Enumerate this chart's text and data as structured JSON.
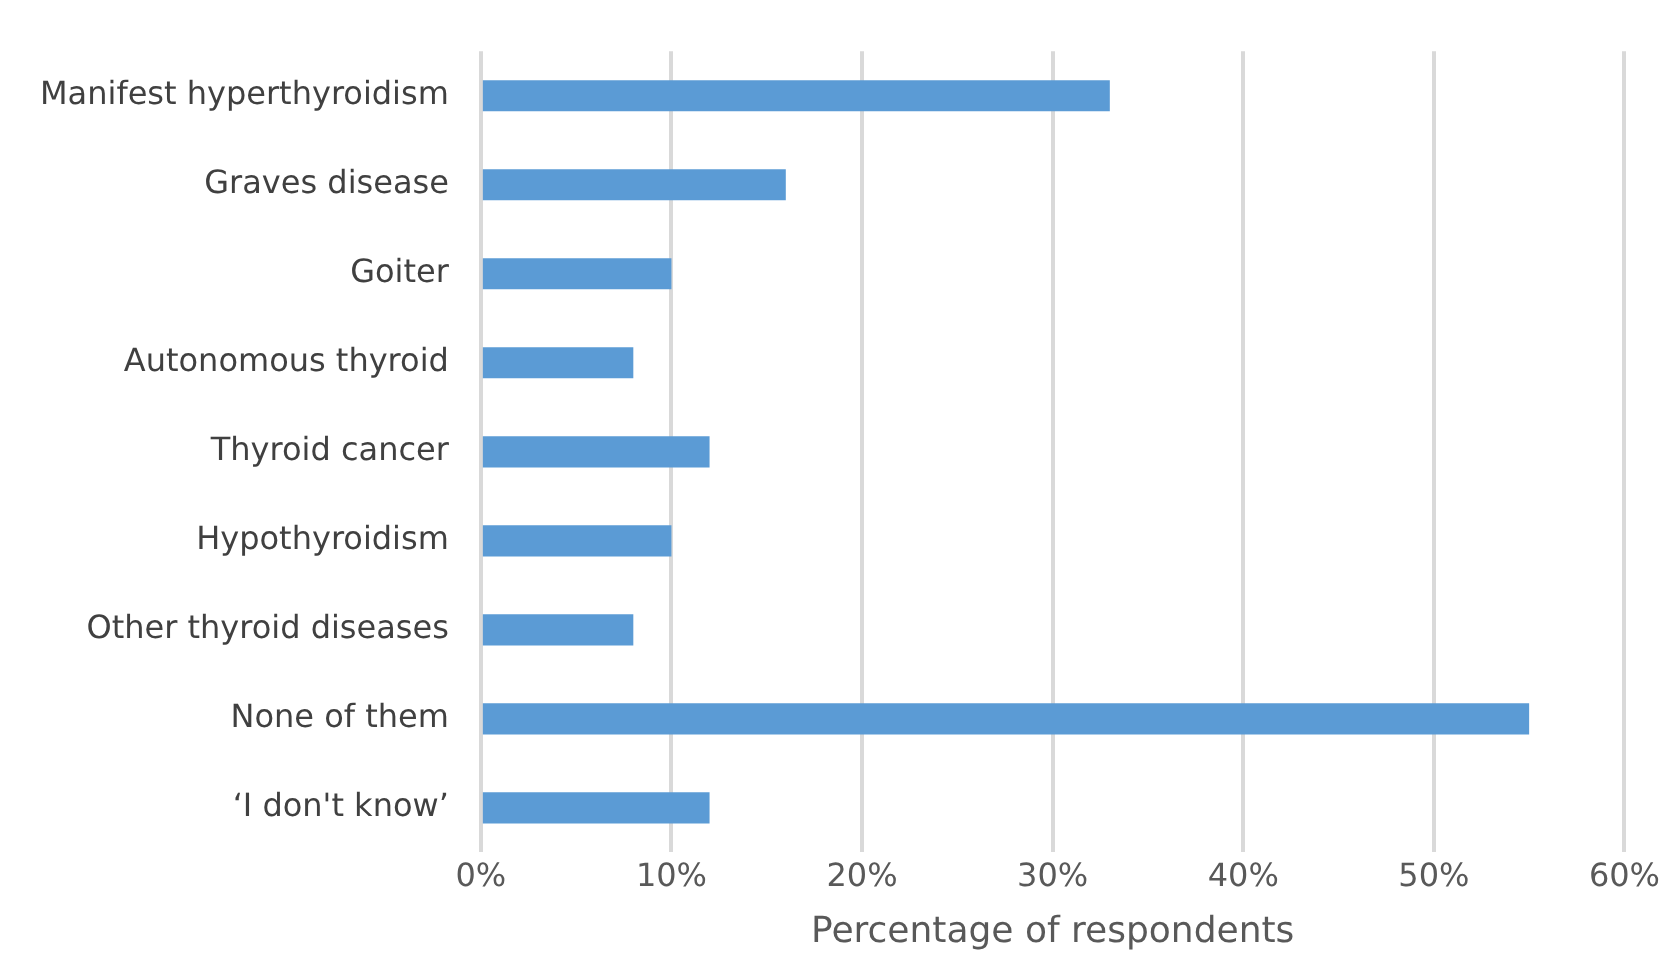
{
  "chart_data": {
    "type": "bar",
    "orientation": "horizontal",
    "xlabel": "Percentage of respondents",
    "categories": [
      "Manifest hyperthyroidism",
      "Graves disease",
      "Goiter",
      "Autonomous thyroid",
      "Thyroid cancer",
      "Hypothyroidism",
      "Other thyroid diseases",
      "None of them",
      "‘I don't know’"
    ],
    "values": [
      33,
      16,
      10,
      8,
      12,
      10,
      8,
      55,
      12
    ],
    "color": "#5b9bd5",
    "xlim": [
      0,
      60
    ],
    "xticks": [
      {
        "value": 0,
        "label": "0%"
      },
      {
        "value": 10,
        "label": "10%"
      },
      {
        "value": 20,
        "label": "20%"
      },
      {
        "value": 30,
        "label": "30%"
      },
      {
        "value": 40,
        "label": "40%"
      },
      {
        "value": 50,
        "label": "50%"
      },
      {
        "value": 60,
        "label": "60%"
      }
    ],
    "grid": "x"
  }
}
